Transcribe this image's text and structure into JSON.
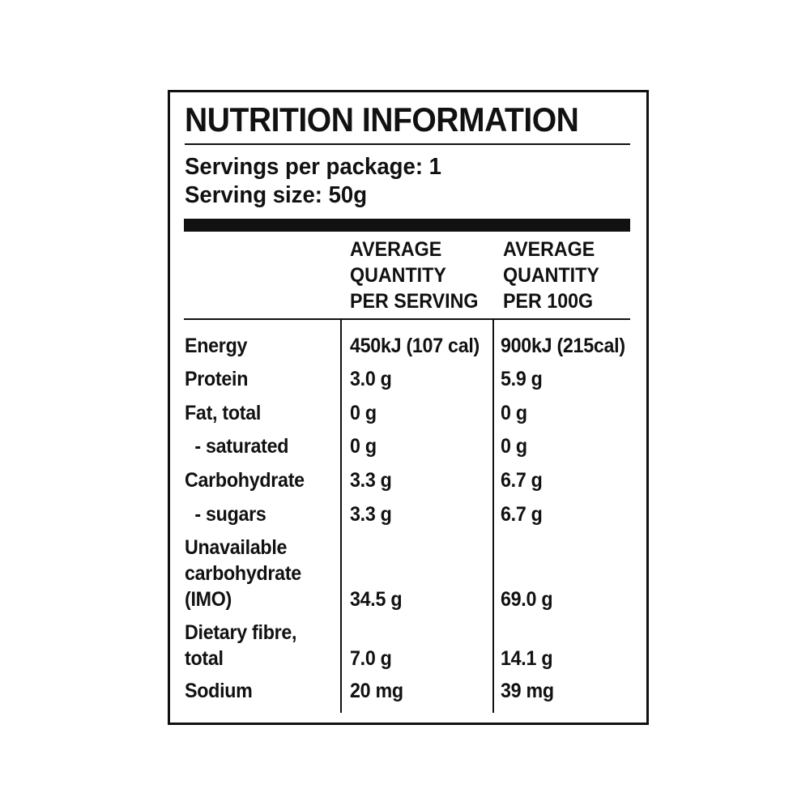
{
  "title": "NUTRITION INFORMATION",
  "servings_per_package": "Servings per package: 1",
  "serving_size": "Serving size: 50g",
  "headers": {
    "per_serving": [
      "AVERAGE",
      "QUANTITY",
      "PER SERVING"
    ],
    "per_100g": [
      "AVERAGE",
      "QUANTITY",
      "PER 100G"
    ]
  },
  "rows": [
    {
      "label": [
        "Energy"
      ],
      "serving": "450kJ (107 cal)",
      "per100": "900kJ (215cal)"
    },
    {
      "label": [
        "Protein"
      ],
      "serving": "3.0 g",
      "per100": "5.9 g"
    },
    {
      "label": [
        "Fat, total"
      ],
      "serving": "0 g",
      "per100": "0 g"
    },
    {
      "label": [
        "  - saturated"
      ],
      "serving": "0 g",
      "per100": "0 g"
    },
    {
      "label": [
        "Carbohydrate"
      ],
      "serving": "3.3 g",
      "per100": "6.7 g"
    },
    {
      "label": [
        "  - sugars"
      ],
      "serving": "3.3 g",
      "per100": "6.7 g"
    },
    {
      "label": [
        "Unavailable",
        "carbohydrate",
        "(IMO)"
      ],
      "serving": "34.5 g",
      "per100": "69.0 g"
    },
    {
      "label": [
        "Dietary fibre,",
        "total"
      ],
      "serving": "7.0 g",
      "per100": "14.1 g"
    },
    {
      "label": [
        "Sodium"
      ],
      "serving": "20 mg",
      "per100": "39 mg"
    }
  ]
}
